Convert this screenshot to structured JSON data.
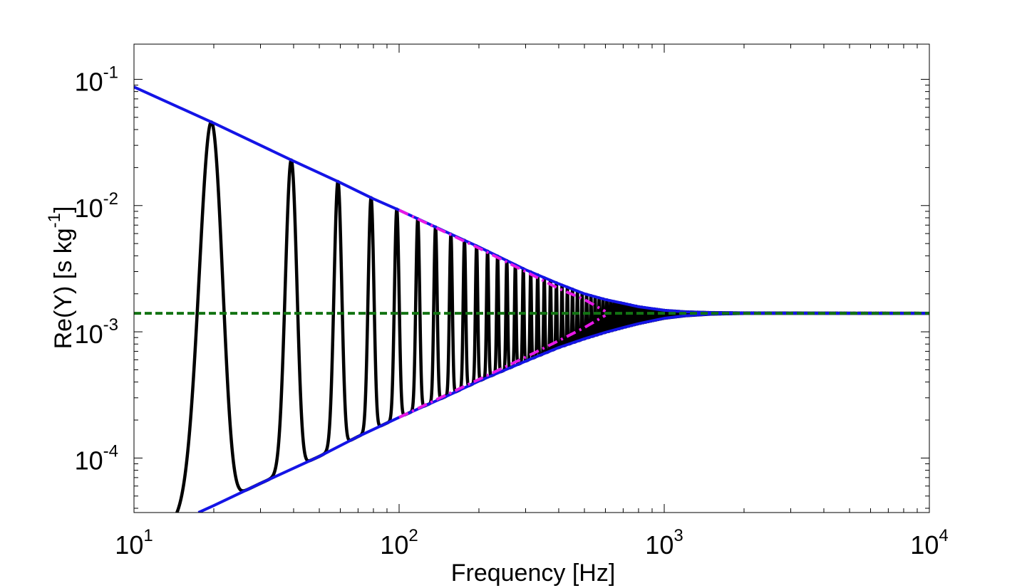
{
  "chart_data": {
    "type": "line",
    "xlabel": "Frequency [Hz]",
    "ylabel": "Re(Y) [s kg-1]",
    "ylabel_parts": {
      "main": "Re(Y) [s kg",
      "sup": "-1",
      "close": "]"
    },
    "x_scale": "log",
    "y_scale": "log",
    "xlim": [
      10,
      10000
    ],
    "ylim": [
      3.7e-05,
      0.19
    ],
    "x_ticks": [
      {
        "value": 10,
        "base": "10",
        "exp": "1"
      },
      {
        "value": 100,
        "base": "10",
        "exp": "2"
      },
      {
        "value": 1000,
        "base": "10",
        "exp": "3"
      },
      {
        "value": 10000,
        "base": "10",
        "exp": "4"
      }
    ],
    "y_ticks": [
      {
        "value": 0.0001,
        "base": "10",
        "exp": "-4"
      },
      {
        "value": 0.001,
        "base": "10",
        "exp": "-3"
      },
      {
        "value": 0.01,
        "base": "10",
        "exp": "-2"
      },
      {
        "value": 0.1,
        "base": "10",
        "exp": "-1"
      }
    ],
    "grid": false,
    "legend": "none",
    "series": [
      {
        "style": "solid-black",
        "color": "#000000",
        "description": "mobility with resonance peaks",
        "fundamental_hz": 19.6,
        "peaks": [
          [
            19.6,
            0.045
          ],
          [
            39.3,
            0.0225
          ],
          [
            58.9,
            0.0152
          ],
          [
            78.6,
            0.0112
          ],
          [
            98.2,
            0.0093
          ],
          [
            118,
            0.0077
          ],
          [
            137.5,
            0.0066
          ],
          [
            157,
            0.0059
          ],
          [
            177,
            0.0053
          ],
          [
            196,
            0.0048
          ],
          [
            216,
            0.0044
          ],
          [
            236,
            0.0041
          ],
          [
            255,
            0.0038
          ],
          [
            275,
            0.0035
          ],
          [
            295,
            0.0033
          ],
          [
            314,
            0.0031
          ],
          [
            334,
            0.0029
          ],
          [
            354,
            0.0028
          ],
          [
            373,
            0.0027
          ],
          [
            393,
            0.0026
          ]
        ],
        "troughs": [
          [
            29.5,
            5.7e-05
          ],
          [
            49,
            0.000103
          ],
          [
            68.7,
            0.000152
          ],
          [
            88.4,
            0.0002
          ],
          [
            108,
            0.000249
          ],
          [
            127.7,
            0.000295
          ],
          [
            147,
            0.00034
          ],
          [
            167,
            0.000385
          ],
          [
            186.5,
            0.00043
          ],
          [
            206,
            0.00047
          ]
        ],
        "start": [
          14,
          3.7e-05
        ]
      },
      {
        "style": "solid-blue-upper",
        "color": "#1414e6",
        "description": "upper envelope",
        "points": [
          [
            10,
            0.087
          ],
          [
            20,
            0.045
          ],
          [
            40,
            0.0225
          ],
          [
            60,
            0.0152
          ],
          [
            80,
            0.0113
          ],
          [
            100,
            0.0092
          ],
          [
            150,
            0.0062
          ],
          [
            200,
            0.0047
          ],
          [
            300,
            0.0031
          ],
          [
            400,
            0.0024
          ],
          [
            500,
            0.002
          ],
          [
            600,
            0.0018
          ],
          [
            700,
            0.00168
          ],
          [
            800,
            0.00158
          ],
          [
            1000,
            0.00148
          ],
          [
            1200,
            0.00144
          ],
          [
            1500,
            0.00142
          ],
          [
            2000,
            0.00141
          ],
          [
            10000,
            0.0014
          ]
        ]
      },
      {
        "style": "solid-blue-lower",
        "color": "#1414e6",
        "description": "lower envelope",
        "points": [
          [
            17.5,
            3.7e-05
          ],
          [
            20,
            4.2e-05
          ],
          [
            30,
            6.3e-05
          ],
          [
            50,
            0.000103
          ],
          [
            70,
            0.000148
          ],
          [
            100,
            0.00021
          ],
          [
            150,
            0.000307
          ],
          [
            200,
            0.000407
          ],
          [
            300,
            0.000585
          ],
          [
            400,
            0.00075
          ],
          [
            500,
            0.00088
          ],
          [
            600,
            0.00099
          ],
          [
            700,
            0.00108
          ],
          [
            800,
            0.00116
          ],
          [
            1000,
            0.00128
          ],
          [
            1200,
            0.00134
          ],
          [
            1500,
            0.00138
          ],
          [
            2000,
            0.0014
          ],
          [
            10000,
            0.0014
          ]
        ]
      },
      {
        "style": "dashdot-magenta-upper",
        "color": "#e619e6",
        "description": "upper asymptote",
        "points": [
          [
            100,
            0.0092
          ],
          [
            200,
            0.0046
          ],
          [
            300,
            0.003
          ],
          [
            400,
            0.0022
          ],
          [
            500,
            0.0018
          ],
          [
            600,
            0.00145
          ]
        ]
      },
      {
        "style": "dashdot-magenta-lower",
        "color": "#e619e6",
        "description": "lower asymptote",
        "points": [
          [
            100,
            0.00021
          ],
          [
            200,
            0.00042
          ],
          [
            300,
            0.00063
          ],
          [
            400,
            0.00085
          ],
          [
            500,
            0.00108
          ],
          [
            600,
            0.00135
          ]
        ]
      },
      {
        "style": "dashed-green",
        "color": "#127312",
        "description": "characteristic mobility level",
        "points": [
          [
            10,
            0.0014
          ],
          [
            10000,
            0.0014
          ]
        ]
      }
    ]
  }
}
